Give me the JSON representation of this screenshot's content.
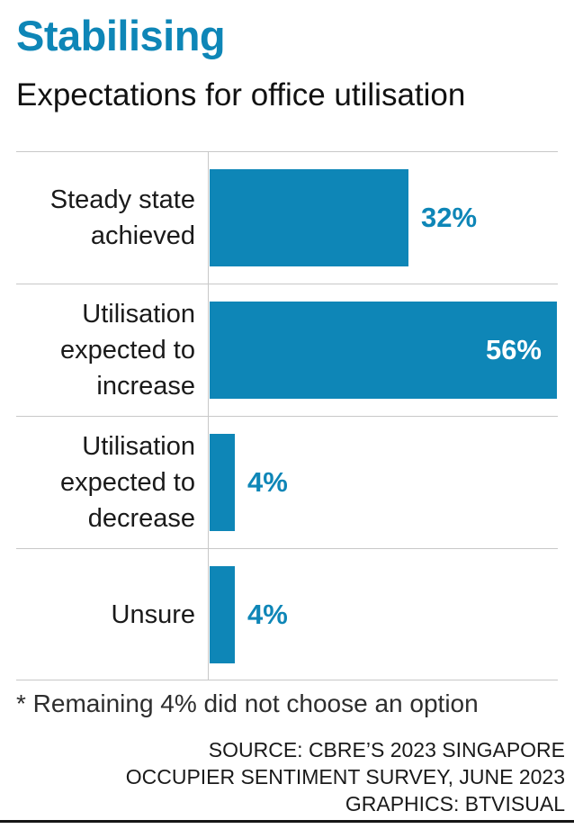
{
  "title": "Stabilising",
  "subtitle": "Expectations for office utilisation",
  "footnote": "* Remaining 4% did not choose an option",
  "source": {
    "lines": [
      "SOURCE: CBRE’S 2023 SINGAPORE",
      "OCCUPIER SENTIMENT SURVEY, JUNE 2023",
      "GRAPHICS: BTVISUAL"
    ]
  },
  "colors": {
    "accent": "#0e86b7",
    "grid": "#c8c8c8",
    "text": "#1a1a1a",
    "value_inside_text": "#ffffff",
    "bottom_rule": "#161616"
  },
  "chart_data": {
    "type": "bar",
    "orientation": "horizontal",
    "title": "Stabilising",
    "subtitle": "Expectations for office utilisation",
    "unit": "%",
    "xlim": [
      0,
      58
    ],
    "grid": false,
    "legend": "none",
    "categories": [
      "Steady state achieved",
      "Utilisation expected to increase",
      "Utilisation expected to decrease",
      "Unsure"
    ],
    "values": [
      32,
      56,
      4,
      4
    ],
    "rows": [
      {
        "label": "Steady state achieved",
        "value": 32,
        "value_label": "32%",
        "value_inside": false
      },
      {
        "label": "Utilisation expected to increase",
        "value": 56,
        "value_label": "56%",
        "value_inside": true
      },
      {
        "label": "Utilisation expected to decrease",
        "value": 4,
        "value_label": "4%",
        "value_inside": false
      },
      {
        "label": "Unsure",
        "value": 4,
        "value_label": "4%",
        "value_inside": false
      }
    ]
  }
}
